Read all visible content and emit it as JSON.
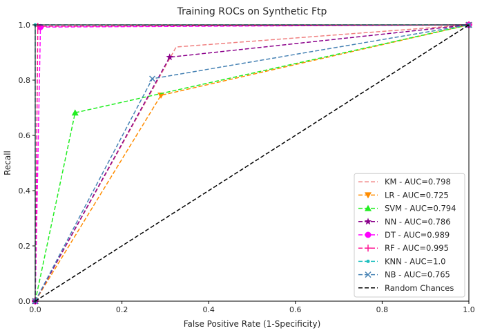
{
  "chart_data": {
    "type": "line",
    "title": "Training ROCs on Synthetic Ftp",
    "xlabel": "False Positive Rate (1-Specificity)",
    "ylabel": "Recall",
    "xlim": [
      0,
      1
    ],
    "ylim": [
      0,
      1
    ],
    "xticks": [
      "0.0",
      "0.2",
      "0.4",
      "0.6",
      "0.8",
      "1.0"
    ],
    "yticks": [
      "0.0",
      "0.2",
      "0.4",
      "0.6",
      "0.8",
      "1.0"
    ],
    "grid": false,
    "legend_position": "lower-right",
    "series": [
      {
        "name": "KM - AUC=0.798",
        "color": "#f08080",
        "marker": "none",
        "points": [
          [
            0,
            0
          ],
          [
            0.325,
            0.92
          ],
          [
            1,
            1
          ]
        ]
      },
      {
        "name": "LR - AUC=0.725",
        "color": "#ff8c00",
        "marker": "triangle-down",
        "points": [
          [
            0,
            0
          ],
          [
            0.29,
            0.745
          ],
          [
            1,
            1
          ]
        ]
      },
      {
        "name": "SVM - AUC=0.794",
        "color": "#22ee22",
        "marker": "triangle-up",
        "points": [
          [
            0,
            0
          ],
          [
            0.092,
            0.682
          ],
          [
            1,
            1
          ]
        ]
      },
      {
        "name": "NN - AUC=0.786",
        "color": "#8b008b",
        "marker": "star",
        "points": [
          [
            0,
            0
          ],
          [
            0.31,
            0.883
          ],
          [
            1,
            1
          ]
        ]
      },
      {
        "name": "DT - AUC=0.989",
        "color": "#ff00ff",
        "marker": "circle",
        "points": [
          [
            0,
            0
          ],
          [
            0.012,
            0.992
          ],
          [
            1,
            1
          ]
        ]
      },
      {
        "name": "RF - AUC=0.995",
        "color": "#ff1493",
        "marker": "plus",
        "points": [
          [
            0,
            0
          ],
          [
            0.006,
            0.995
          ],
          [
            1,
            1
          ]
        ]
      },
      {
        "name": "KNN - AUC=1.0",
        "color": "#20c0c0",
        "marker": "dot",
        "points": [
          [
            0,
            0
          ],
          [
            0,
            1
          ],
          [
            1,
            1
          ]
        ]
      },
      {
        "name": "NB - AUC=0.765",
        "color": "#4682b4",
        "marker": "x",
        "points": [
          [
            0,
            0
          ],
          [
            0.27,
            0.805
          ],
          [
            1,
            1
          ]
        ]
      },
      {
        "name": "Random Chances",
        "color": "#000000",
        "marker": "none",
        "points": [
          [
            0,
            0
          ],
          [
            1,
            1
          ]
        ]
      }
    ]
  }
}
